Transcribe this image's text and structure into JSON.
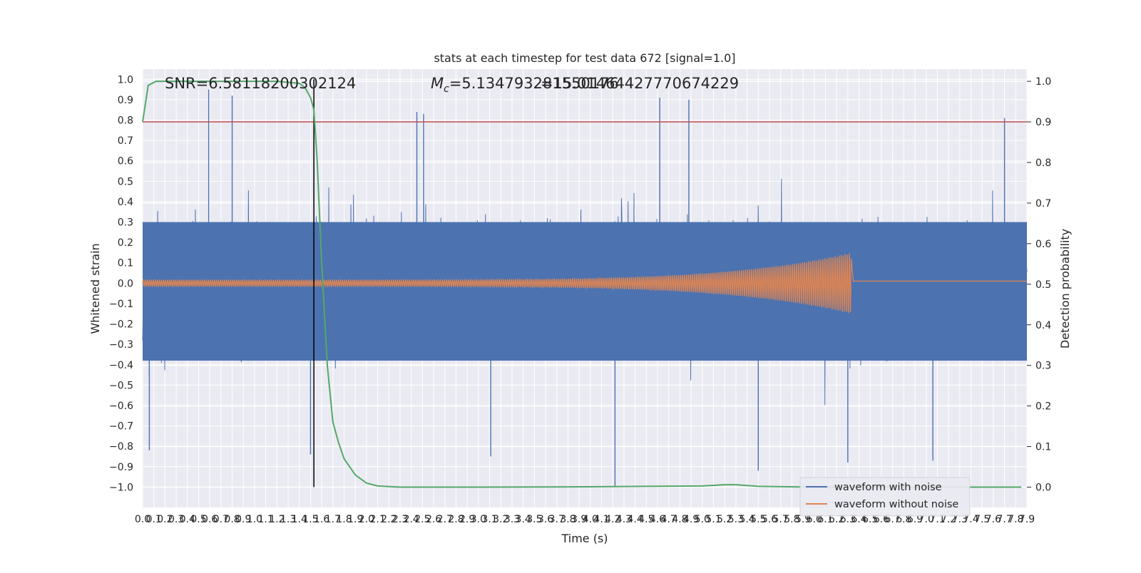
{
  "chart_data": {
    "type": "line",
    "title": "stats at each timestep for test data 672 [signal=1.0]",
    "xlabel": "Time (s)",
    "ylabel_left": "Whitened strain",
    "ylabel_right": "Detection probability",
    "xlim": [
      0.0,
      7.9
    ],
    "ylim_left": [
      -1.1,
      1.05
    ],
    "ylim_right": [
      -0.05,
      1.03
    ],
    "x_ticks": [
      "0.0",
      "0.1",
      "0.2",
      "0.3",
      "0.4",
      "0.5",
      "0.6",
      "0.7",
      "0.8",
      "0.9",
      "1.0",
      "1.1",
      "1.2",
      "1.3",
      "1.4",
      "1.5",
      "1.6",
      "1.7",
      "1.8",
      "1.9",
      "2.0",
      "2.1",
      "2.2",
      "2.3",
      "2.4",
      "2.5",
      "2.6",
      "2.7",
      "2.8",
      "2.9",
      "3.0",
      "3.1",
      "3.2",
      "3.3",
      "3.4",
      "3.5",
      "3.6",
      "3.7",
      "3.8",
      "3.9",
      "4.0",
      "4.1",
      "4.2",
      "4.3",
      "4.4",
      "4.5",
      "4.6",
      "4.7",
      "4.8",
      "4.9",
      "5.0",
      "5.1",
      "5.2",
      "5.3",
      "5.4",
      "5.5",
      "5.6",
      "5.7",
      "5.8",
      "5.9",
      "6.0",
      "6.1",
      "6.2",
      "6.3",
      "6.4",
      "6.5",
      "6.6",
      "6.7",
      "6.8",
      "6.9",
      "7.0",
      "7.1",
      "7.2",
      "7.3",
      "7.4",
      "7.5",
      "7.6",
      "7.7",
      "7.8",
      "7.9"
    ],
    "y_ticks_left": [
      "−1.0",
      "−0.9",
      "−0.8",
      "−0.7",
      "−0.6",
      "−0.5",
      "−0.4",
      "−0.3",
      "−0.2",
      "−0.1",
      "0.0",
      "0.1",
      "0.2",
      "0.3",
      "0.4",
      "0.5",
      "0.6",
      "0.7",
      "0.8",
      "0.9",
      "1.0"
    ],
    "y_ticks_right": [
      "0.0",
      "0.1",
      "0.2",
      "0.3",
      "0.4",
      "0.5",
      "0.6",
      "0.7",
      "0.8",
      "0.9",
      "1.0"
    ],
    "grid": true,
    "legend_position": "bottom-right",
    "annotations": {
      "snr": "SNR=6.58118200302124",
      "mc_prefix": "M",
      "mc_sub": "c",
      "mc_value": "=5.134793281550176",
      "overlap": "=15.014644277706​74229"
    },
    "threshold": {
      "value": 0.9,
      "axis": "right",
      "color": "#c44e52"
    },
    "vline": {
      "x": 1.53,
      "color": "#000000"
    },
    "series": [
      {
        "name": "waveform with noise",
        "axis": "left",
        "color": "#4c72b0",
        "description": "dense noisy strain, approx uniform envelope",
        "envelope_typical": 0.35,
        "peaks": [
          {
            "x": 0.06,
            "y": -0.82
          },
          {
            "x": 0.59,
            "y": 0.95
          },
          {
            "x": 0.8,
            "y": 0.92
          },
          {
            "x": 1.5,
            "y": -0.84
          },
          {
            "x": 2.51,
            "y": 0.83
          },
          {
            "x": 2.45,
            "y": 0.84
          },
          {
            "x": 3.11,
            "y": -0.85
          },
          {
            "x": 4.22,
            "y": -1.0
          },
          {
            "x": 4.62,
            "y": 0.91
          },
          {
            "x": 4.88,
            "y": 0.9
          },
          {
            "x": 5.5,
            "y": -0.92
          },
          {
            "x": 6.3,
            "y": -0.88
          },
          {
            "x": 7.06,
            "y": -0.87
          },
          {
            "x": 7.7,
            "y": 0.81
          }
        ]
      },
      {
        "name": "waveform without noise",
        "axis": "left",
        "color": "#dd8452",
        "description": "chirp signal growing in amplitude until merger",
        "merger_time": 6.33,
        "amplitude_start": 0.015,
        "amplitude_end": 0.15
      },
      {
        "name": "",
        "axis": "right",
        "color": "#55a868",
        "x": [
          0.0,
          0.05,
          0.12,
          0.2,
          0.4,
          0.8,
          1.2,
          1.4,
          1.45,
          1.5,
          1.53,
          1.56,
          1.6,
          1.65,
          1.7,
          1.75,
          1.8,
          1.9,
          2.0,
          2.1,
          2.3,
          3.0,
          4.0,
          5.0,
          5.2,
          5.3,
          5.5,
          6.0,
          7.0,
          7.85
        ],
        "y": [
          0.9,
          0.99,
          1.0,
          1.0,
          1.0,
          1.0,
          1.0,
          0.995,
          0.985,
          0.96,
          0.93,
          0.8,
          0.55,
          0.3,
          0.16,
          0.11,
          0.07,
          0.03,
          0.01,
          0.003,
          0.0,
          0.0,
          0.001,
          0.003,
          0.006,
          0.006,
          0.002,
          0.0,
          0.0,
          0.0
        ]
      }
    ]
  }
}
